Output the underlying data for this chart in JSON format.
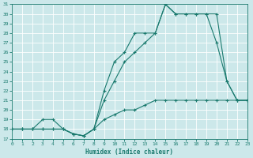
{
  "xlabel": "Humidex (Indice chaleur)",
  "bg_color": "#cce8ea",
  "grid_color": "#b8d8da",
  "line_color": "#1a7a6e",
  "x_min": 0,
  "x_max": 23,
  "y_min": 17,
  "y_max": 31,
  "line1_x": [
    0,
    1,
    2,
    3,
    4,
    5,
    6,
    7,
    8,
    9,
    10,
    11,
    12,
    13,
    14,
    15,
    16,
    17,
    18,
    19,
    20,
    21,
    22,
    23
  ],
  "line1_y": [
    18.0,
    18.0,
    18.0,
    18.0,
    18.0,
    18.0,
    17.5,
    17.3,
    18.0,
    19.0,
    19.5,
    20.0,
    20.0,
    20.5,
    21.0,
    21.0,
    21.0,
    21.0,
    21.0,
    21.0,
    21.0,
    21.0,
    21.0,
    21.0
  ],
  "line2_x": [
    0,
    1,
    2,
    3,
    4,
    5,
    6,
    7,
    8,
    9,
    10,
    11,
    12,
    13,
    14,
    15,
    16,
    17,
    18,
    19,
    20,
    21,
    22,
    23
  ],
  "line2_y": [
    18,
    18,
    18,
    18,
    18,
    18,
    17.5,
    17.3,
    18,
    21,
    23,
    25,
    26,
    27,
    28,
    31,
    30,
    30,
    30,
    30,
    27,
    23,
    21,
    21
  ],
  "line3_x": [
    0,
    1,
    2,
    3,
    4,
    5,
    6,
    7,
    8,
    9,
    10,
    11,
    12,
    13,
    14,
    15,
    16,
    17,
    18,
    19,
    20,
    21,
    22,
    23
  ],
  "line3_y": [
    18,
    18,
    18,
    19,
    19,
    18,
    17.5,
    17.3,
    18,
    22,
    25,
    26,
    28,
    28,
    28,
    31,
    30,
    30,
    30,
    30,
    30,
    23,
    21,
    21
  ]
}
